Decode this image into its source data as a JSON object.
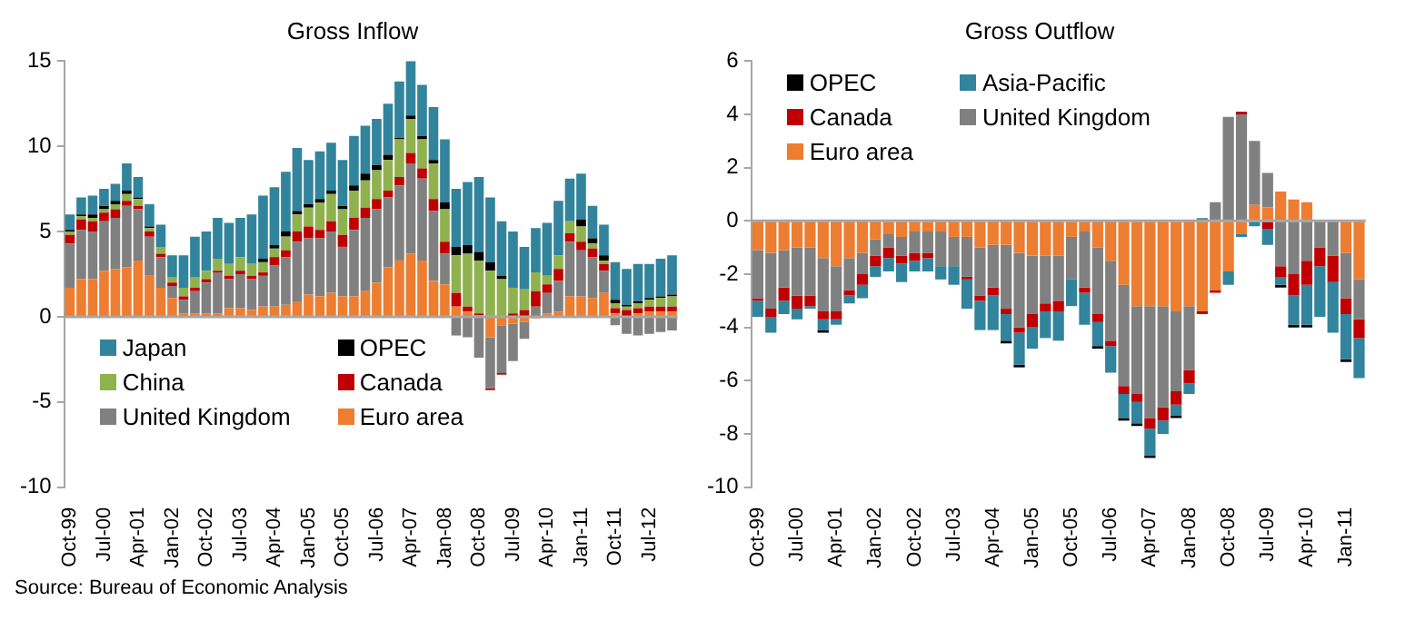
{
  "chart_data": [
    {
      "type": "bar",
      "title": "Gross Inflow",
      "stacked": true,
      "legend": "bottom left",
      "annotations": [
        "Source: Bureau of Economic Analysis"
      ],
      "categories": [
        "Oct-99",
        null,
        null,
        "Jul-00",
        null,
        null,
        "Apr-01",
        null,
        null,
        "Jan-02",
        null,
        null,
        "Oct-02",
        null,
        null,
        "Jul-03",
        null,
        null,
        "Apr-04",
        null,
        null,
        "Jan-05",
        null,
        null,
        "Oct-05",
        null,
        null,
        "Jul-06",
        null,
        null,
        "Apr-07",
        null,
        null,
        "Jan-08",
        null,
        null,
        "Oct-08",
        null,
        null,
        "Jul-09",
        null,
        null,
        "Apr-10",
        null,
        null,
        "Jan-11",
        null,
        null,
        "Oct-11",
        null,
        null,
        "Jul-12",
        null,
        null
      ],
      "ylim": [
        -10,
        15
      ],
      "yticks": [
        -10,
        -5,
        0,
        5,
        10,
        15
      ],
      "series": [
        {
          "name": "Euro area",
          "color": "#ed7d31",
          "values": [
            1.7,
            2.2,
            2.2,
            2.7,
            2.8,
            2.9,
            3.3,
            2.4,
            1.7,
            1.1,
            0.2,
            0.2,
            0.2,
            0.2,
            0.5,
            0.5,
            0.4,
            0.6,
            0.6,
            0.7,
            0.9,
            1.3,
            1.2,
            1.4,
            1.2,
            1.2,
            1.5,
            2.0,
            2.9,
            3.3,
            3.7,
            3.3,
            2.1,
            1.9,
            0.6,
            0.3,
            0.1,
            -1.2,
            -0.5,
            -0.4,
            -0.3,
            -0.1,
            0.2,
            0.3,
            1.2,
            1.2,
            1.1,
            1.4,
            0.2,
            null,
            0.2,
            0.3,
            0.3,
            0.3
          ]
        },
        {
          "name": "United Kingdom",
          "color": "#808080",
          "values": [
            2.6,
            2.9,
            2.8,
            2.9,
            3.0,
            3.6,
            3.0,
            2.3,
            1.8,
            0.7,
            0.8,
            1.3,
            1.8,
            2.4,
            1.7,
            2.0,
            1.8,
            1.8,
            2.4,
            2.8,
            3.5,
            3.3,
            3.4,
            3.6,
            2.9,
            3.9,
            4.3,
            4.3,
            4.1,
            4.4,
            5.3,
            4.8,
            4.1,
            1.8,
            -1.1,
            -1.2,
            -2.4,
            -3.0,
            -2.8,
            -2.2,
            -1.0,
            0.6,
            1.2,
            1.8,
            3.2,
            2.7,
            2.4,
            1.3,
            -0.5,
            -1.0,
            -1.1,
            -1.0,
            -0.9,
            -0.8
          ]
        },
        {
          "name": "Canada",
          "color": "#c00000",
          "values": [
            0.5,
            0.6,
            0.6,
            0.5,
            0.5,
            0.3,
            0.2,
            0.3,
            0.2,
            0.2,
            0.2,
            0.2,
            0.2,
            0.1,
            0.2,
            0.2,
            0.2,
            0.2,
            0.5,
            0.4,
            0.6,
            0.7,
            0.5,
            0.6,
            0.7,
            0.7,
            0.6,
            0.6,
            0.4,
            0.5,
            0.6,
            0.6,
            0.7,
            0.7,
            0.8,
            0.3,
            0.1,
            -0.1,
            -0.1,
            0.2,
            0.4,
            0.9,
            0.5,
            0.7,
            0.5,
            0.5,
            0.5,
            0.4,
            0.3,
            0.4,
            0.3,
            0.3,
            0.3,
            0.3
          ]
        },
        {
          "name": "China",
          "color": "#8fb24f",
          "values": [
            0.2,
            0.2,
            0.2,
            0.2,
            0.3,
            0.4,
            0.4,
            0.2,
            0.4,
            0.3,
            0.5,
            0.6,
            0.5,
            0.7,
            0.7,
            0.8,
            0.7,
            0.6,
            0.5,
            0.8,
            1.0,
            1.1,
            1.6,
            1.6,
            1.5,
            1.6,
            1.6,
            1.7,
            1.8,
            2.2,
            2.0,
            1.7,
            2.1,
            1.9,
            2.2,
            3.1,
            3.1,
            2.7,
            2.2,
            1.5,
            1.2,
            1.1,
            0.5,
            0.8,
            0.7,
            0.9,
            0.3,
            0.2,
            0.3,
            0.2,
            0.3,
            0.4,
            0.5,
            0.6
          ]
        },
        {
          "name": "OPEC",
          "color": "#000000",
          "values": [
            0.1,
            0.1,
            0.2,
            0.2,
            0.2,
            0.2,
            0.1,
            0.1,
            0,
            0,
            0,
            0,
            0,
            0,
            0,
            0,
            0,
            0.2,
            0.2,
            0.3,
            0.2,
            0.2,
            0.2,
            0.2,
            0.2,
            0.3,
            0.4,
            0.3,
            0.3,
            0.1,
            0.2,
            0.2,
            0.2,
            0.4,
            0.5,
            0.5,
            0.5,
            0.5,
            0.2,
            0,
            0,
            0,
            0,
            0,
            0,
            0.4,
            0.3,
            0.3,
            0.2,
            0.1,
            0.1,
            0.1,
            0.1,
            0.1
          ]
        },
        {
          "name": "Japan",
          "color": "#31849b",
          "values": [
            0.9,
            1.0,
            1.1,
            1.0,
            1.0,
            1.6,
            1.2,
            1.3,
            1.3,
            1.3,
            1.9,
            2.4,
            2.3,
            2.4,
            2.4,
            2.3,
            2.9,
            3.7,
            3.4,
            3.5,
            3.7,
            2.6,
            2.8,
            2.8,
            2.7,
            2.9,
            2.8,
            2.7,
            3.0,
            3.3,
            3.2,
            3.0,
            3.1,
            3.7,
            3.4,
            3.7,
            4.4,
            3.8,
            3.2,
            3.3,
            2.5,
            2.6,
            3.1,
            3.2,
            2.5,
            2.7,
            1.9,
            1.8,
            2.2,
            2.1,
            2.2,
            2.0,
            2.2,
            2.3
          ]
        }
      ]
    },
    {
      "type": "bar",
      "title": "Gross Outflow",
      "stacked": true,
      "legend": "top left",
      "categories": [
        "Oct-99",
        null,
        null,
        "Jul-00",
        null,
        null,
        "Apr-01",
        null,
        null,
        "Jan-02",
        null,
        null,
        "Oct-02",
        null,
        null,
        "Jul-03",
        null,
        null,
        "Apr-04",
        null,
        null,
        "Jan-05",
        null,
        null,
        "Oct-05",
        null,
        null,
        "Jul-06",
        null,
        null,
        "Apr-07",
        null,
        null,
        "Jan-08",
        null,
        null,
        "Oct-08",
        null,
        null,
        "Jul-09",
        null,
        null,
        "Apr-10",
        null,
        null,
        "Jan-11",
        null
      ],
      "ylim": [
        -10,
        6
      ],
      "yticks": [
        -10,
        -8,
        -6,
        -4,
        -2,
        0,
        2,
        4,
        6
      ],
      "series": [
        {
          "name": "Euro area",
          "color": "#ed7d31",
          "values": [
            -1.1,
            -1.2,
            -1.1,
            -1.0,
            -1.0,
            -1.4,
            -1.7,
            -1.4,
            -1.2,
            -0.7,
            -0.5,
            -0.6,
            -0.4,
            -0.4,
            -0.4,
            -0.6,
            -0.6,
            -1.0,
            -0.9,
            -0.9,
            -1.2,
            -1.3,
            -1.3,
            -1.3,
            -0.6,
            -0.4,
            -1.0,
            -1.5,
            -2.4,
            -3.2,
            -3.2,
            -3.2,
            -3.4,
            -3.2,
            -3.4,
            -2.6,
            -1.9,
            -0.5,
            0.6,
            0.5,
            1.1,
            0.8,
            0.7,
            0,
            null,
            -1.2,
            -2.2
          ]
        },
        {
          "name": "United Kingdom",
          "color": "#808080",
          "values": [
            -1.8,
            -2.1,
            -1.4,
            -1.8,
            -1.8,
            -2.0,
            -1.7,
            -1.2,
            -0.8,
            -0.6,
            -0.5,
            -0.7,
            -0.8,
            -0.8,
            -1.3,
            -1.1,
            -1.5,
            -1.8,
            -1.6,
            -2.4,
            -2.8,
            -2.2,
            -1.8,
            -1.7,
            -1.6,
            -2.1,
            -2.5,
            -3.0,
            -3.8,
            -3.3,
            -4.2,
            -3.8,
            -3.0,
            -2.4,
            0,
            0.7,
            3.9,
            4.0,
            2.4,
            1.3,
            -1.7,
            -2.0,
            -1.5,
            -1.0,
            -1.3,
            -1.7,
            -1.5
          ]
        },
        {
          "name": "Canada",
          "color": "#c00000",
          "values": [
            -0.1,
            -0.3,
            -0.5,
            -0.5,
            -0.4,
            -0.3,
            -0.3,
            -0.2,
            -0.4,
            -0.4,
            -0.4,
            -0.3,
            -0.3,
            -0.2,
            0,
            0,
            -0.1,
            -0.2,
            -0.3,
            -0.2,
            -0.2,
            -0.5,
            -0.3,
            -0.4,
            0,
            -0.2,
            -0.3,
            -0.2,
            -0.3,
            -0.3,
            -0.4,
            -0.5,
            -0.5,
            -0.5,
            -0.1,
            -0.1,
            0,
            0.1,
            0,
            -0.3,
            -0.4,
            -0.8,
            -0.9,
            -0.7,
            -1.0,
            -0.6,
            -0.7
          ]
        },
        {
          "name": "Asia-Pacific",
          "color": "#31849b",
          "values": [
            -0.6,
            -0.6,
            -0.5,
            -0.4,
            -0.1,
            -0.4,
            -0.2,
            -0.3,
            -0.5,
            -0.4,
            -0.5,
            -0.7,
            -0.4,
            -0.5,
            -0.5,
            -0.7,
            -1.1,
            -1.1,
            -1.3,
            -1.0,
            -1.2,
            -0.8,
            -1.0,
            -1.1,
            -1.0,
            -1.2,
            -0.9,
            -1.0,
            -0.9,
            -0.8,
            -1.0,
            -0.5,
            -0.4,
            -0.4,
            0.1,
            0,
            -0.5,
            -0.1,
            -0.2,
            -0.6,
            -0.3,
            -1.1,
            -1.5,
            -1.9,
            -1.9,
            -1.7,
            -1.5
          ]
        },
        {
          "name": "OPEC",
          "color": "#000000",
          "values": [
            0,
            0,
            0,
            0,
            0,
            -0.1,
            0,
            0,
            0,
            0,
            0,
            0,
            0,
            0,
            0,
            0,
            0,
            0,
            0,
            -0.1,
            -0.1,
            0,
            0,
            0,
            0,
            0,
            -0.1,
            0,
            -0.1,
            -0.1,
            -0.1,
            0,
            -0.1,
            0,
            0,
            0,
            0,
            0,
            0,
            0,
            -0.1,
            -0.1,
            -0.1,
            0,
            0,
            -0.1,
            0
          ]
        }
      ]
    }
  ]
}
